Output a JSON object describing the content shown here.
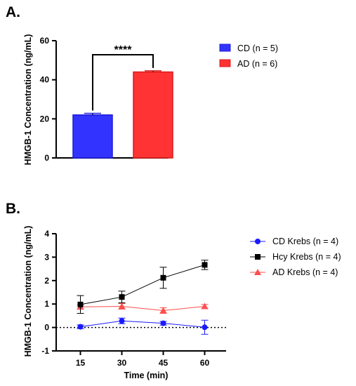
{
  "figure": {
    "panel_a_letter": "A.",
    "panel_b_letter": "B."
  },
  "chart_data": [
    {
      "type": "bar",
      "categories": [
        "CD (n = 5)",
        "AD (n = 6)"
      ],
      "values": [
        22.0,
        44.0
      ],
      "errors": [
        0.8,
        0.6
      ],
      "colors": [
        "#3333ff",
        "#ff3333"
      ],
      "edge_colors": [
        "#1c1cd9",
        "#d91c1c"
      ],
      "title": "",
      "xlabel": "",
      "ylabel": "HMGB-1 Concentration (ng/mL)",
      "ylim": [
        0,
        60
      ],
      "yticks": [
        "0",
        "20",
        "40",
        "60"
      ],
      "legend": {
        "position": "right",
        "entries": [
          {
            "label": "CD (n = 5)",
            "color": "#3333ff"
          },
          {
            "label": "AD (n = 6)",
            "color": "#ff3333"
          }
        ]
      },
      "annotation": {
        "text": "****",
        "between": [
          0,
          1
        ]
      },
      "grid": false
    },
    {
      "type": "line",
      "x": [
        15,
        30,
        45,
        60
      ],
      "xticks": [
        "15",
        "30",
        "45",
        "60"
      ],
      "xlabel": "Time (min)",
      "ylabel": "HMGB-1 Concentration (ng/mL)",
      "ylim": [
        -1,
        4
      ],
      "yticks": [
        "-1",
        "0",
        "1",
        "2",
        "3",
        "4"
      ],
      "reference_line": {
        "y": 0,
        "style": "dotted"
      },
      "series": [
        {
          "name": "CD Krebs (n = 4)",
          "marker": "circle",
          "color": "#1a1aff",
          "values": [
            0.03,
            0.28,
            0.18,
            0.01
          ],
          "errors": [
            0.08,
            0.12,
            0.08,
            0.3
          ]
        },
        {
          "name": "Hcy Krebs (n = 4)",
          "marker": "square",
          "color": "#000000",
          "values": [
            0.98,
            1.3,
            2.12,
            2.67
          ],
          "errors": [
            0.38,
            0.25,
            0.45,
            0.2
          ]
        },
        {
          "name": "AD Krebs (n = 4)",
          "marker": "triangle",
          "color": "#ff4d4d",
          "values": [
            0.88,
            0.9,
            0.72,
            0.9
          ],
          "errors": [
            0.08,
            0.12,
            0.12,
            0.08
          ]
        }
      ],
      "legend": {
        "position": "right"
      },
      "grid": false
    }
  ]
}
